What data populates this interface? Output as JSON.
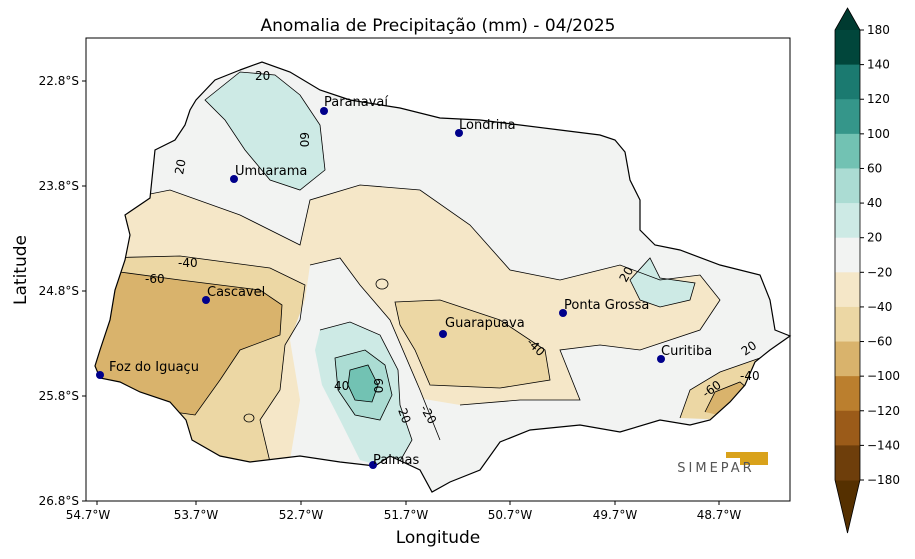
{
  "title": "Anomalia de Precipitação (mm) - 04/2025",
  "xlabel": "Longitude",
  "ylabel": "Latitude",
  "x_ticks": [
    "54.7°W",
    "53.7°W",
    "52.7°W",
    "51.7°W",
    "50.7°W",
    "49.7°W",
    "48.7°W"
  ],
  "y_ticks": [
    "22.8°S",
    "23.8°S",
    "24.8°S",
    "25.8°S",
    "26.8°S"
  ],
  "colorbar": {
    "ticks": [
      "180",
      "140",
      "120",
      "100",
      "60",
      "40",
      "20",
      "−20",
      "−40",
      "−60",
      "−100",
      "−120",
      "−140",
      "−180"
    ],
    "colors": [
      "#01463b",
      "#1b7a70",
      "#35968a",
      "#72c2b3",
      "#abdcd3",
      "#cdeae5",
      "#f2f3f2",
      "#f5e7c8",
      "#ecd7a4",
      "#d9b36c",
      "#bb7f2e",
      "#9b5b19",
      "#6e3e0b"
    ],
    "extend_top": "#003a30",
    "extend_bottom": "#553000"
  },
  "cities": [
    {
      "name": "Paranavaí"
    },
    {
      "name": "Londrina"
    },
    {
      "name": "Umuarama"
    },
    {
      "name": "Cascavel"
    },
    {
      "name": "Ponta Grossa"
    },
    {
      "name": "Guarapuava"
    },
    {
      "name": "Curitiba"
    },
    {
      "name": "Foz do Iguaçu"
    },
    {
      "name": "Palmas"
    }
  ],
  "contour_labels": [
    "20",
    "60",
    "20",
    "-40",
    "-60",
    "40",
    "60",
    "20",
    "-20",
    "-40",
    "20",
    "20",
    "-40",
    "-60"
  ],
  "logo_text": "SIMEPAR"
}
